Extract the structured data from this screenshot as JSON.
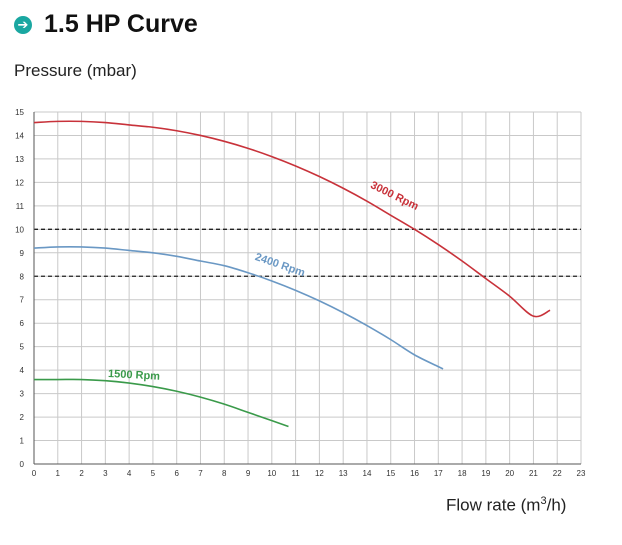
{
  "header": {
    "title": "1.5 HP Curve",
    "icon": "arrow-right-circle-icon"
  },
  "chart_data": {
    "type": "line",
    "title": "1.5 HP Curve",
    "ylabel": "Pressure (mbar)",
    "xlabel_prefix": "Flow rate (m",
    "xlabel_sup": "3",
    "xlabel_suffix": "/h)",
    "xlim": [
      0,
      23
    ],
    "ylim": [
      0,
      15
    ],
    "x_ticks": [
      "0",
      "1",
      "2",
      "3",
      "4",
      "5",
      "6",
      "7",
      "8",
      "9",
      "10",
      "11",
      "12",
      "13",
      "14",
      "15",
      "16",
      "17",
      "18",
      "19",
      "20",
      "21",
      "22",
      "23"
    ],
    "y_ticks": [
      "0",
      "1",
      "2",
      "3",
      "4",
      "5",
      "6",
      "7",
      "8",
      "9",
      "10",
      "11",
      "12",
      "13",
      "14",
      "15"
    ],
    "grid": true,
    "reference_lines": [
      10,
      8
    ],
    "series": [
      {
        "name": "3000 Rpm",
        "color": "#c8323a",
        "x": [
          0,
          1,
          2,
          3,
          4,
          5,
          6,
          7,
          8,
          9,
          10,
          11,
          12,
          13,
          14,
          15,
          16,
          17,
          18,
          19,
          20,
          21,
          21.7
        ],
        "y": [
          14.55,
          14.6,
          14.6,
          14.55,
          14.45,
          14.35,
          14.2,
          14.0,
          13.75,
          13.45,
          13.1,
          12.7,
          12.25,
          11.75,
          11.2,
          10.6,
          10.0,
          9.35,
          8.65,
          7.9,
          7.15,
          6.3,
          6.55
        ]
      },
      {
        "name": "2400 Rpm",
        "color": "#6a98c4",
        "x": [
          0,
          1,
          2,
          3,
          4,
          5,
          6,
          7,
          8,
          9,
          10,
          11,
          12,
          13,
          14,
          15,
          16,
          17,
          17.2
        ],
        "y": [
          9.2,
          9.25,
          9.25,
          9.2,
          9.1,
          9.0,
          8.85,
          8.65,
          8.45,
          8.15,
          7.8,
          7.4,
          6.95,
          6.45,
          5.9,
          5.3,
          4.65,
          4.15,
          4.05
        ]
      },
      {
        "name": "1500 Rpm",
        "color": "#3a9a4a",
        "x": [
          0,
          1,
          2,
          3,
          4,
          5,
          6,
          7,
          8,
          9,
          10,
          10.7
        ],
        "y": [
          3.6,
          3.6,
          3.6,
          3.55,
          3.45,
          3.3,
          3.1,
          2.85,
          2.55,
          2.2,
          1.85,
          1.6
        ]
      }
    ]
  }
}
